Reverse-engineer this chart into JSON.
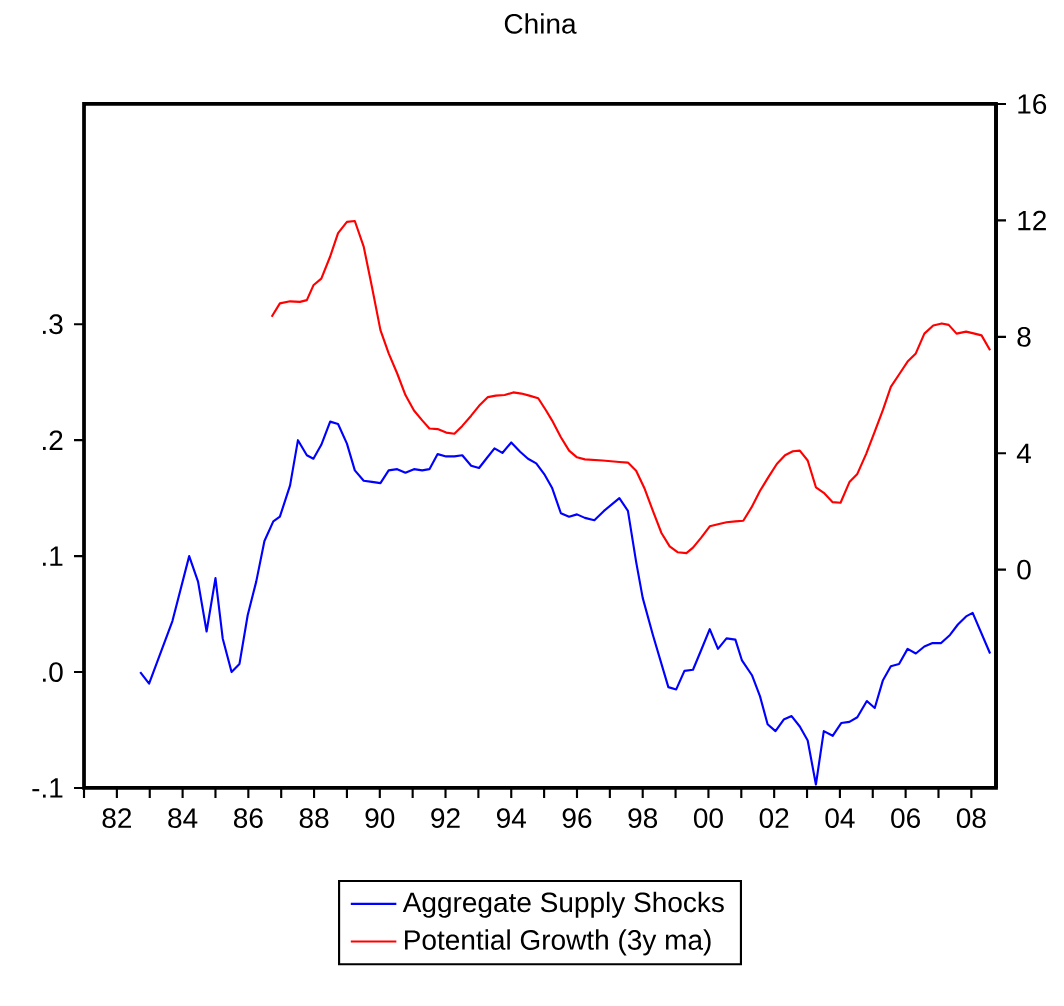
{
  "chart_data": {
    "type": "line",
    "title": "China",
    "series": [
      {
        "name": "Aggregate Supply Shocks",
        "color": "#0000ff",
        "x": [
          1982.71,
          1982.98,
          1983.69,
          1984.2,
          1984.47,
          1984.73,
          1985.0,
          1985.22,
          1985.49,
          1985.73,
          1985.98,
          1986.24,
          1986.49,
          1986.76,
          1986.96,
          1987.27,
          1987.51,
          1987.78,
          1987.98,
          1988.22,
          1988.49,
          1988.73,
          1989.0,
          1989.24,
          1989.51,
          1989.76,
          1990.02,
          1990.27,
          1990.53,
          1990.78,
          1991.04,
          1991.29,
          1991.51,
          1991.76,
          1992.02,
          1992.27,
          1992.51,
          1992.78,
          1993.02,
          1993.24,
          1993.49,
          1993.73,
          1994.0,
          1994.27,
          1994.51,
          1994.76,
          1995.02,
          1995.24,
          1995.51,
          1995.76,
          1996.0,
          1996.24,
          1996.53,
          1996.82,
          1997.29,
          1997.55,
          1997.8,
          1998.0,
          1998.31,
          1998.78,
          1999.02,
          1999.27,
          1999.53,
          1999.78,
          2000.04,
          2000.29,
          2000.55,
          2000.82,
          2001.02,
          2001.33,
          2001.57,
          2001.8,
          2002.04,
          2002.29,
          2002.53,
          2002.78,
          2003.02,
          2003.27,
          2003.51,
          2003.78,
          2004.04,
          2004.29,
          2004.53,
          2004.82,
          2005.06,
          2005.31,
          2005.55,
          2005.8,
          2006.06,
          2006.31,
          2006.57,
          2006.82,
          2007.08,
          2007.35,
          2007.59,
          2007.84,
          2008.04,
          2008.57
        ],
        "values": [
          0.0,
          -0.01,
          0.044,
          0.1,
          0.078,
          0.035,
          0.081,
          0.029,
          0.0,
          0.007,
          0.049,
          0.078,
          0.113,
          0.13,
          0.134,
          0.161,
          0.2,
          0.187,
          0.184,
          0.196,
          0.216,
          0.214,
          0.197,
          0.174,
          0.165,
          0.164,
          0.163,
          0.174,
          0.175,
          0.172,
          0.175,
          0.174,
          0.175,
          0.188,
          0.186,
          0.186,
          0.187,
          0.178,
          0.176,
          0.184,
          0.193,
          0.189,
          0.198,
          0.19,
          0.184,
          0.18,
          0.17,
          0.159,
          0.137,
          0.134,
          0.136,
          0.133,
          0.131,
          0.139,
          0.15,
          0.139,
          0.095,
          0.064,
          0.032,
          -0.013,
          -0.015,
          0.001,
          0.002,
          0.019,
          0.037,
          0.02,
          0.029,
          0.028,
          0.01,
          -0.003,
          -0.021,
          -0.045,
          -0.051,
          -0.041,
          -0.038,
          -0.047,
          -0.059,
          -0.097,
          -0.051,
          -0.055,
          -0.044,
          -0.043,
          -0.039,
          -0.025,
          -0.031,
          -0.007,
          0.005,
          0.007,
          0.02,
          0.016,
          0.022,
          0.025,
          0.025,
          0.032,
          0.041,
          0.048,
          0.051,
          0.016
        ]
      },
      {
        "name": "Potential Growth (3y ma)",
        "color": "#ff0000",
        "axis": "y2",
        "x": [
          1986.71,
          1986.96,
          1987.27,
          1987.57,
          1987.78,
          1987.98,
          1988.22,
          1988.49,
          1988.73,
          1989.0,
          1989.24,
          1989.51,
          1989.76,
          1990.02,
          1990.27,
          1990.53,
          1990.78,
          1991.04,
          1991.29,
          1991.51,
          1991.76,
          1992.02,
          1992.27,
          1992.51,
          1992.78,
          1993.02,
          1993.29,
          1993.53,
          1993.8,
          1994.06,
          1994.31,
          1994.55,
          1994.82,
          1995.06,
          1995.24,
          1995.51,
          1995.76,
          1996.0,
          1996.24,
          1996.78,
          1997.29,
          1997.55,
          1997.8,
          1998.06,
          1998.31,
          1998.57,
          1998.82,
          1999.06,
          1999.33,
          1999.53,
          1999.78,
          2000.04,
          2000.29,
          2000.55,
          2000.82,
          2001.06,
          2001.31,
          2001.57,
          2001.82,
          2002.08,
          2002.33,
          2002.57,
          2002.78,
          2003.02,
          2003.27,
          2003.51,
          2003.78,
          2004.02,
          2004.29,
          2004.53,
          2004.8,
          2005.06,
          2005.31,
          2005.55,
          2005.82,
          2006.06,
          2006.31,
          2006.57,
          2006.84,
          2007.1,
          2007.31,
          2007.55,
          2007.84,
          2008.1,
          2008.31,
          2008.57
        ],
        "values": [
          8.69,
          9.15,
          9.22,
          9.2,
          9.26,
          9.77,
          10.0,
          10.76,
          11.56,
          11.95,
          11.98,
          11.1,
          9.72,
          8.23,
          7.43,
          6.74,
          6.0,
          5.47,
          5.13,
          4.85,
          4.83,
          4.71,
          4.67,
          4.94,
          5.29,
          5.63,
          5.93,
          5.98,
          6.0,
          6.09,
          6.05,
          5.98,
          5.89,
          5.47,
          5.13,
          4.55,
          4.09,
          3.86,
          3.79,
          3.75,
          3.7,
          3.68,
          3.4,
          2.78,
          2.02,
          1.26,
          0.8,
          0.6,
          0.57,
          0.76,
          1.1,
          1.49,
          1.56,
          1.63,
          1.66,
          1.68,
          2.14,
          2.71,
          3.17,
          3.63,
          3.93,
          4.07,
          4.09,
          3.75,
          2.83,
          2.64,
          2.32,
          2.3,
          3.01,
          3.29,
          3.98,
          4.74,
          5.49,
          6.28,
          6.74,
          7.15,
          7.43,
          8.11,
          8.39,
          8.46,
          8.41,
          8.11,
          8.18,
          8.11,
          8.05,
          7.54
        ]
      }
    ],
    "xlim": [
      1981,
      2008.75
    ],
    "xticks": [
      {
        "value": 1981,
        "label": null
      },
      {
        "value": 1982,
        "label": "82"
      },
      {
        "value": 1983,
        "label": null
      },
      {
        "value": 1984,
        "label": "84"
      },
      {
        "value": 1985,
        "label": null
      },
      {
        "value": 1986,
        "label": "86"
      },
      {
        "value": 1987,
        "label": null
      },
      {
        "value": 1988,
        "label": "88"
      },
      {
        "value": 1989,
        "label": null
      },
      {
        "value": 1990,
        "label": "90"
      },
      {
        "value": 1991,
        "label": null
      },
      {
        "value": 1992,
        "label": "92"
      },
      {
        "value": 1993,
        "label": null
      },
      {
        "value": 1994,
        "label": "94"
      },
      {
        "value": 1995,
        "label": null
      },
      {
        "value": 1996,
        "label": "96"
      },
      {
        "value": 1997,
        "label": null
      },
      {
        "value": 1998,
        "label": "98"
      },
      {
        "value": 1999,
        "label": null
      },
      {
        "value": 2000,
        "label": "00"
      },
      {
        "value": 2001,
        "label": null
      },
      {
        "value": 2002,
        "label": "02"
      },
      {
        "value": 2003,
        "label": null
      },
      {
        "value": 2004,
        "label": "04"
      },
      {
        "value": 2005,
        "label": null
      },
      {
        "value": 2006,
        "label": "06"
      },
      {
        "value": 2007,
        "label": null
      },
      {
        "value": 2008,
        "label": "08"
      }
    ],
    "ylim": [
      -0.1,
      0.49
    ],
    "yticks": [
      {
        "value": -0.1,
        "label": "-.1"
      },
      {
        "value": 0,
        "label": ".0"
      },
      {
        "value": 0.1,
        "label": ".1"
      },
      {
        "value": 0.2,
        "label": ".2"
      },
      {
        "value": 0.3,
        "label": ".3"
      }
    ],
    "y2lim": [
      -7.5,
      16
    ],
    "y2ticks": [
      0,
      4,
      8,
      12,
      16
    ],
    "legend": "bottom",
    "grid": false
  }
}
